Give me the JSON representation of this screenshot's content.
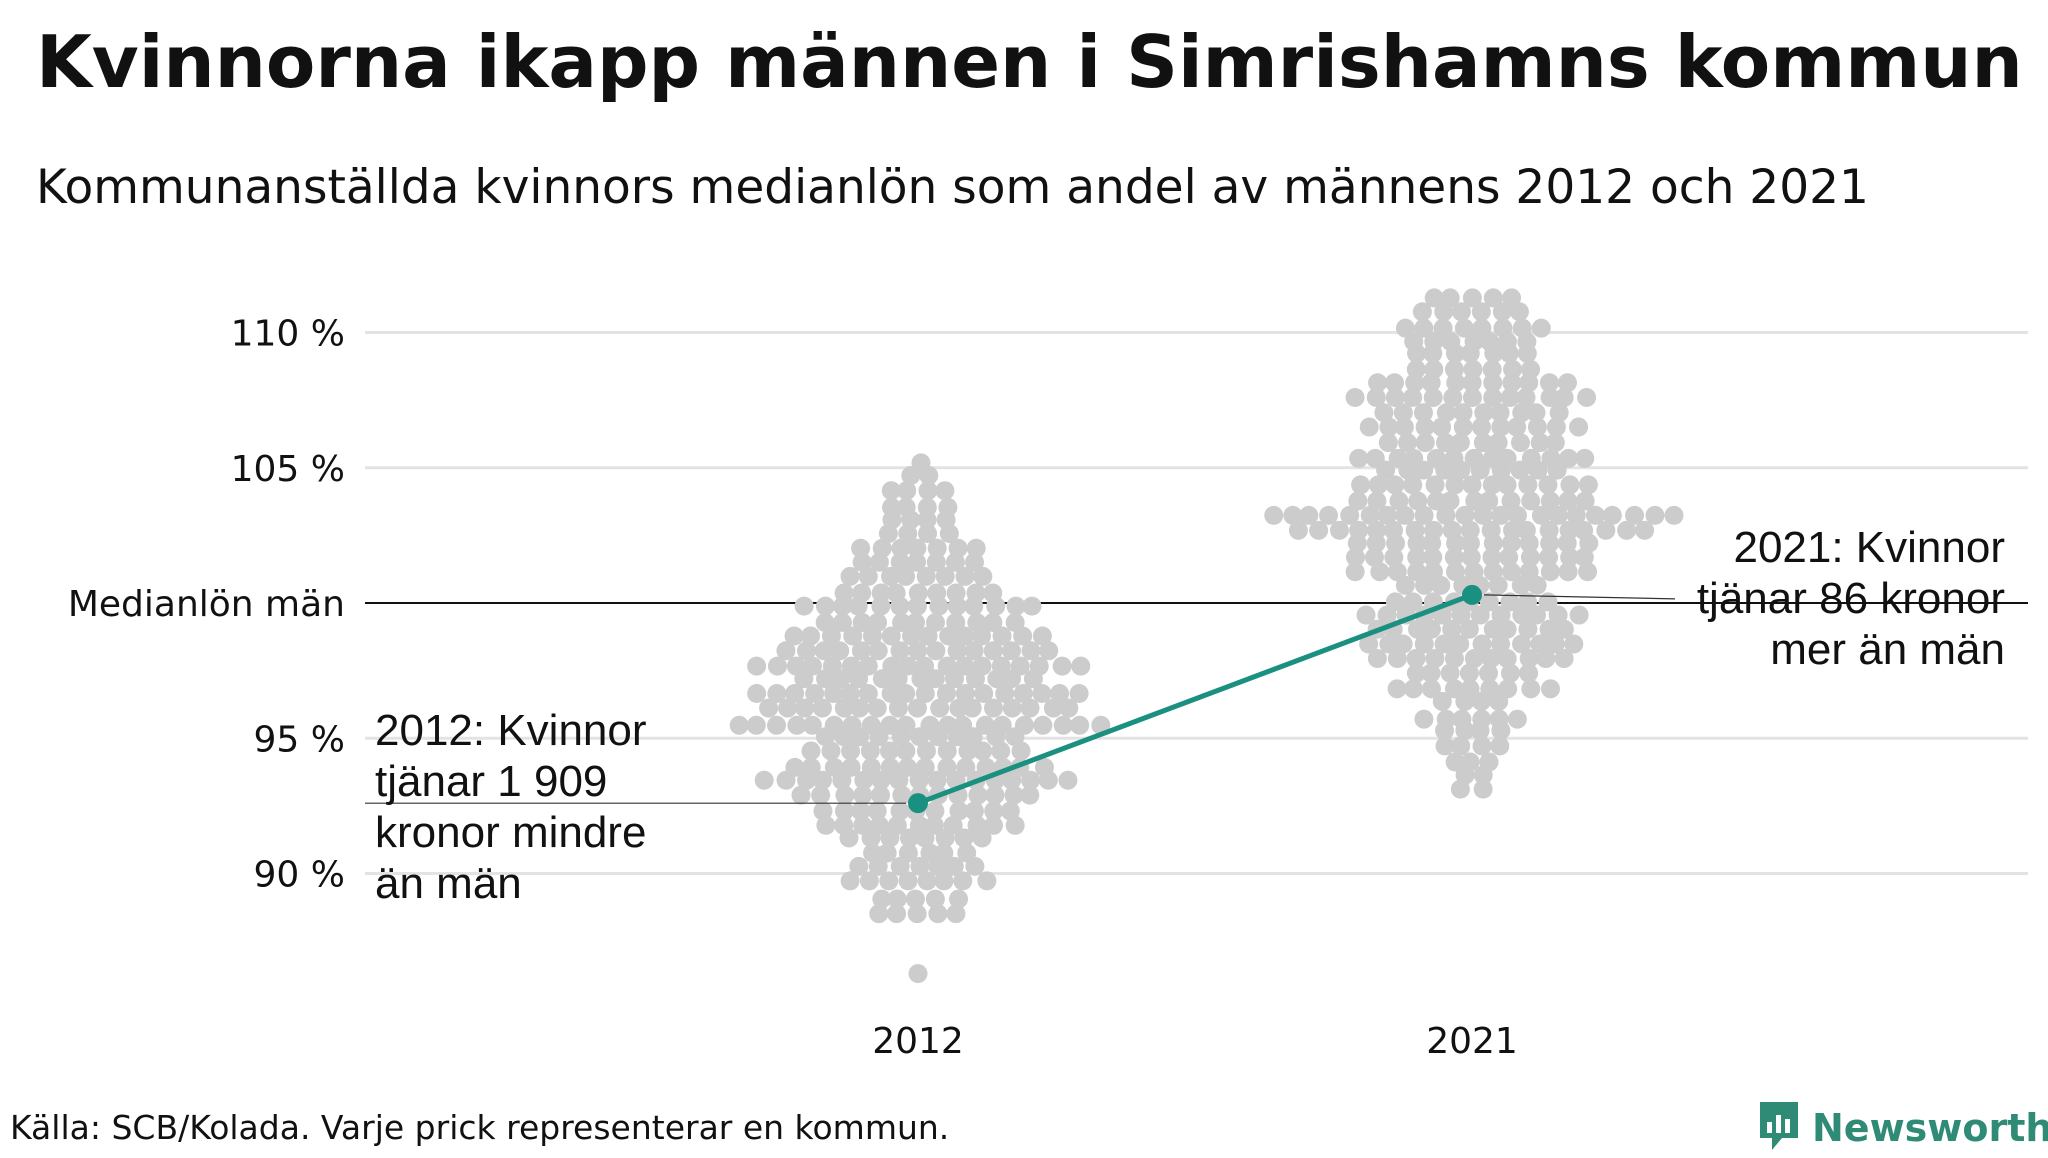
{
  "title": "Kvinnorna ikapp männen i Simrishamns kommun",
  "subtitle": "Kommunanställda kvinnors medianlön som andel av männens 2012 och 2021",
  "source": "Källa: SCB/Kolada. Varje prick representerar en kommun.",
  "logo": {
    "text": "Newsworthy",
    "icon": "newsworthy-logo-icon",
    "color": "#2f8a76"
  },
  "colors": {
    "dots": "#cccccc",
    "highlight": "#1a9080",
    "grid": "#e3e3e3",
    "reference": "#111111"
  },
  "chart_data": {
    "type": "scatter",
    "x": [
      "2012",
      "2021"
    ],
    "ylim": [
      85,
      112
    ],
    "yticks": [
      {
        "value": 110,
        "label": "110 %"
      },
      {
        "value": 105,
        "label": "105 %"
      },
      {
        "value": 100,
        "label": "Medianlön män"
      },
      {
        "value": 95,
        "label": "95 %"
      },
      {
        "value": 90,
        "label": "90 %"
      }
    ],
    "reference_line": {
      "value": 100,
      "label": "Medianlön män"
    },
    "series": [
      {
        "x": "2012",
        "y_range": [
          88.5,
          105.2
        ],
        "distribution": "beeswarm",
        "points": 290,
        "highlight": {
          "name": "Simrishamn",
          "value": 92.6
        },
        "annotation": [
          "2012: Kvinnor",
          "tjänar 1 909",
          "kronor mindre",
          "än män"
        ]
      },
      {
        "x": "2021",
        "y_range": [
          92.6,
          111.3
        ],
        "distribution": "beeswarm",
        "points": 290,
        "highlight": {
          "name": "Simrishamn",
          "value": 100.3
        },
        "annotation": [
          "2021: Kvinnor",
          "tjänar 86 kronor",
          "mer än män"
        ]
      }
    ],
    "outliers": [
      {
        "x": "2012",
        "value": 86.3
      }
    ]
  }
}
